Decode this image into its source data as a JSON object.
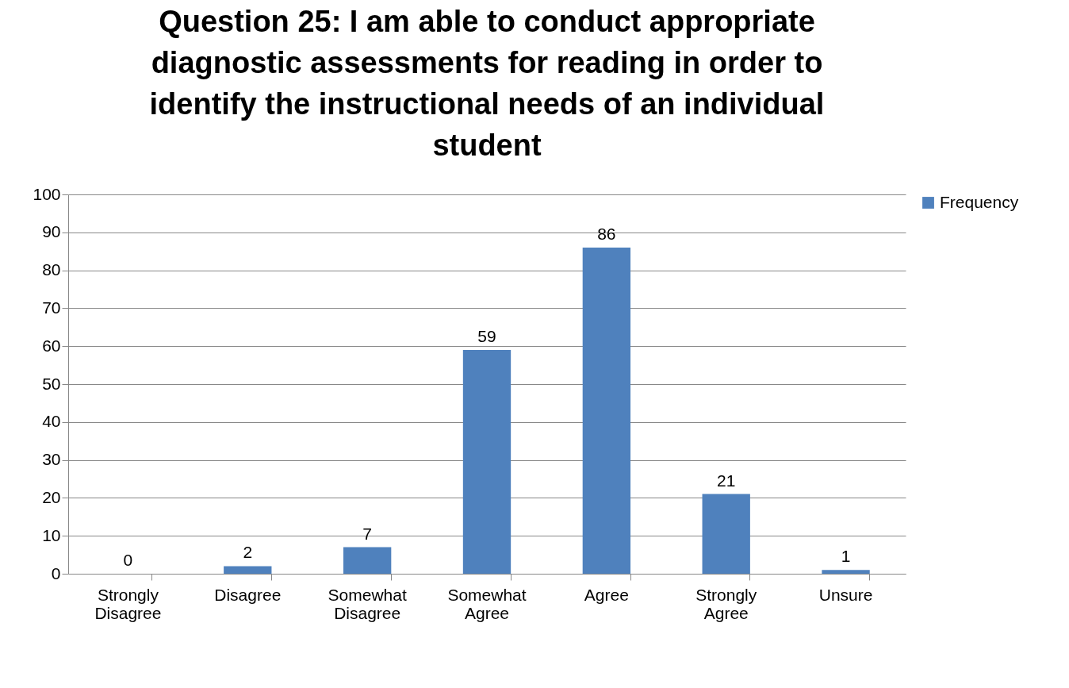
{
  "chart_data": {
    "type": "bar",
    "title": "Question 25: I am able to conduct appropriate diagnostic assessments for reading in order to identify the instructional needs of an individual student",
    "categories": [
      "Strongly Disagree",
      "Disagree",
      "Somewhat Disagree",
      "Somewhat Agree",
      "Agree",
      "Strongly Agree",
      "Unsure"
    ],
    "series": [
      {
        "name": "Frequency",
        "color": "#4f81bd",
        "values": [
          0,
          2,
          7,
          59,
          86,
          21,
          1
        ]
      }
    ],
    "ylim": [
      0,
      100
    ],
    "yticks": [
      0,
      10,
      20,
      30,
      40,
      50,
      60,
      70,
      80,
      90,
      100
    ],
    "grid": "y",
    "legend": "right",
    "data_labels": true
  }
}
